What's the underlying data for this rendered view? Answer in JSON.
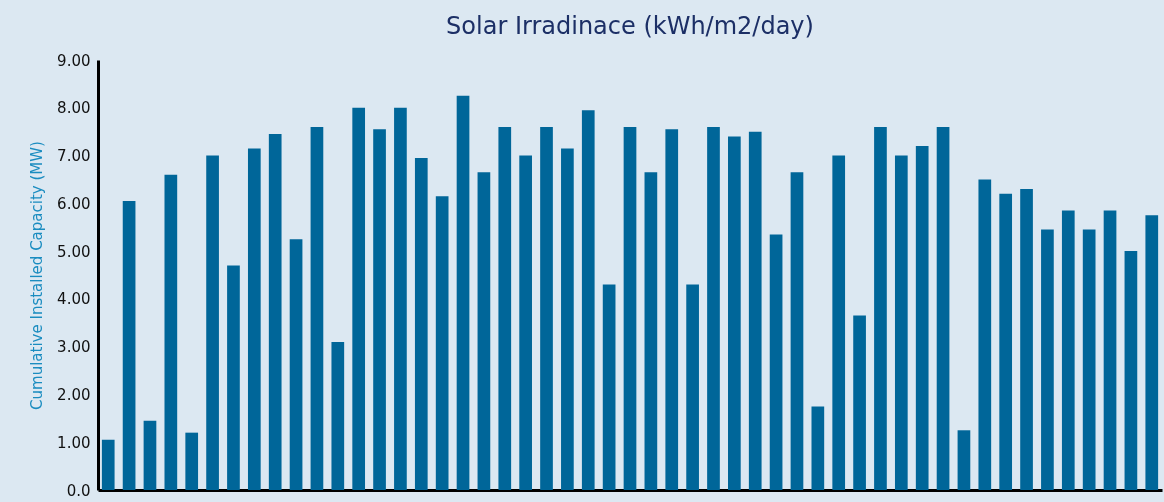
{
  "chart_data": {
    "type": "bar",
    "title": "Solar Irradinace (kWh/m2/day)",
    "ylabel": "Cumulative Installed Capacity (MW)",
    "categories": [
      null,
      null,
      null,
      null,
      null,
      null,
      null,
      null,
      null,
      null,
      null,
      null,
      null,
      null,
      null,
      null,
      null,
      null,
      null,
      null,
      null,
      null,
      null,
      null,
      null,
      null,
      null,
      null,
      null,
      null,
      null,
      null,
      null,
      null,
      null,
      null,
      null,
      null,
      null,
      null,
      null,
      null,
      null,
      null,
      null,
      null,
      null,
      null,
      null,
      null,
      null
    ],
    "values": [
      1.05,
      6.05,
      1.45,
      6.6,
      1.2,
      7.0,
      4.7,
      7.15,
      7.45,
      5.25,
      7.6,
      3.1,
      8.0,
      7.55,
      8.0,
      6.95,
      6.15,
      8.25,
      6.65,
      7.6,
      7.0,
      7.6,
      7.15,
      7.95,
      4.3,
      7.6,
      6.65,
      7.55,
      4.3,
      7.6,
      7.4,
      7.5,
      5.35,
      6.65,
      1.75,
      7.0,
      3.65,
      7.6,
      7.0,
      7.2,
      7.6,
      1.25,
      6.5,
      6.2,
      6.3,
      5.45,
      5.85,
      5.45,
      5.85,
      5.0,
      5.75
    ],
    "color": "#006699",
    "ylim": [
      0,
      9
    ],
    "yticks": [
      {
        "value": 0,
        "label": "0.0"
      },
      {
        "value": 1,
        "label": "1.00"
      },
      {
        "value": 2,
        "label": "2.00"
      },
      {
        "value": 3,
        "label": "3.00"
      },
      {
        "value": 4,
        "label": "4.00"
      },
      {
        "value": 5,
        "label": "5.00"
      },
      {
        "value": 6,
        "label": "6.00"
      },
      {
        "value": 7,
        "label": "7.00"
      },
      {
        "value": 8,
        "label": "8.00"
      },
      {
        "value": 9,
        "label": "9.00"
      }
    ],
    "tick_labels": "y",
    "grid": false
  }
}
